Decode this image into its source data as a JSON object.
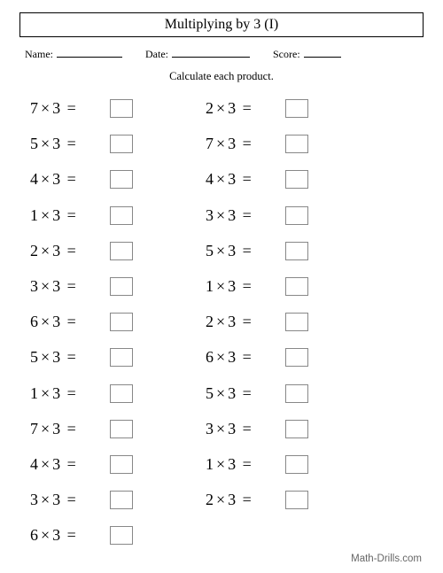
{
  "title": "Multiplying by 3 (I)",
  "header": {
    "name_label": "Name:",
    "date_label": "Date:",
    "score_label": "Score:",
    "blank_widths": {
      "name": 74,
      "date": 88,
      "score": 42
    }
  },
  "instruction": "Calculate each product.",
  "operator": "×",
  "equals": "=",
  "columns": [
    [
      {
        "a": 7,
        "b": 3
      },
      {
        "a": 5,
        "b": 3
      },
      {
        "a": 4,
        "b": 3
      },
      {
        "a": 1,
        "b": 3
      },
      {
        "a": 2,
        "b": 3
      },
      {
        "a": 3,
        "b": 3
      },
      {
        "a": 6,
        "b": 3
      },
      {
        "a": 5,
        "b": 3
      },
      {
        "a": 1,
        "b": 3
      },
      {
        "a": 7,
        "b": 3
      },
      {
        "a": 4,
        "b": 3
      },
      {
        "a": 3,
        "b": 3
      },
      {
        "a": 6,
        "b": 3
      }
    ],
    [
      {
        "a": 2,
        "b": 3
      },
      {
        "a": 7,
        "b": 3
      },
      {
        "a": 4,
        "b": 3
      },
      {
        "a": 3,
        "b": 3
      },
      {
        "a": 5,
        "b": 3
      },
      {
        "a": 1,
        "b": 3
      },
      {
        "a": 2,
        "b": 3
      },
      {
        "a": 6,
        "b": 3
      },
      {
        "a": 5,
        "b": 3
      },
      {
        "a": 3,
        "b": 3
      },
      {
        "a": 1,
        "b": 3
      },
      {
        "a": 2,
        "b": 3
      }
    ]
  ],
  "footer": "Math-Drills.com"
}
